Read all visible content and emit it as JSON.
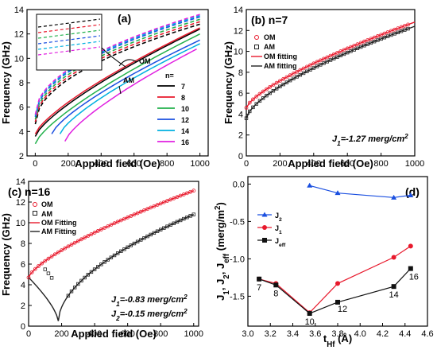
{
  "chart_data": [
    {
      "panel": "(a)",
      "type": "line",
      "xlabel": "Applied field (Oe)",
      "ylabel": "Frequency (GHz)",
      "xlim": [
        -50,
        1050
      ],
      "ylim": [
        2,
        14
      ],
      "xticks": [
        0,
        200,
        400,
        600,
        800,
        1000
      ],
      "yticks": [
        2,
        4,
        6,
        8,
        10,
        12,
        14
      ],
      "labels": {
        "om": "OM",
        "am": "AM",
        "legend_title": "n="
      },
      "series": [
        {
          "name": "7",
          "color": "#000000",
          "om": [
            [
              0,
              4.6
            ],
            [
              1000,
              12.8
            ]
          ],
          "am": [
            [
              0,
              3.6
            ],
            [
              1000,
              12.4
            ]
          ]
        },
        {
          "name": "8",
          "color": "#e8192c",
          "om": [
            [
              0,
              4.8
            ],
            [
              1000,
              13.0
            ]
          ],
          "am": [
            [
              0,
              3.8
            ],
            [
              1000,
              12.5
            ]
          ]
        },
        {
          "name": "10",
          "color": "#22b14c",
          "om": [
            [
              0,
              5.0
            ],
            [
              1000,
              13.2
            ]
          ],
          "am": [
            [
              0,
              3.0
            ],
            [
              1000,
              12.0
            ]
          ]
        },
        {
          "name": "12",
          "color": "#1a4fe0",
          "om": [
            [
              0,
              5.2
            ],
            [
              1000,
              13.4
            ]
          ],
          "am": [
            [
              100,
              3.8
            ],
            [
              1000,
              11.5
            ]
          ]
        },
        {
          "name": "14",
          "color": "#00b0e0",
          "om": [
            [
              0,
              5.3
            ],
            [
              1000,
              13.5
            ]
          ],
          "am": [
            [
              150,
              3.8
            ],
            [
              1000,
              11.2
            ]
          ]
        },
        {
          "name": "16",
          "color": "#e020e0",
          "om": [
            [
              0,
              5.4
            ],
            [
              1000,
              13.6
            ]
          ],
          "am": [
            [
              180,
              3.2
            ],
            [
              1000,
              10.9
            ]
          ]
        }
      ],
      "inset": true
    },
    {
      "panel": "(b) n=7",
      "type": "scatter",
      "xlabel": "Applied field (Oe)",
      "ylabel": "Frequency (GHz)",
      "xlim": [
        0,
        1000
      ],
      "ylim": [
        0,
        14
      ],
      "xticks": [
        0,
        200,
        400,
        600,
        800,
        1000
      ],
      "yticks": [
        0,
        2,
        4,
        6,
        8,
        10,
        12,
        14
      ],
      "legend": [
        "OM",
        "AM",
        "OM fitting",
        "AM fitting"
      ],
      "annotations": [
        "J1=-1.27 merg/cm2"
      ],
      "series": [
        {
          "name": "OM",
          "color": "#e8192c",
          "f0": 4.6,
          "f1000": 12.8
        },
        {
          "name": "AM",
          "color": "#222222",
          "f0": 3.6,
          "f1000": 12.4
        }
      ]
    },
    {
      "panel": "(c) n=16",
      "type": "scatter",
      "xlabel": "Applied field (Oe)",
      "ylabel": "Frequency (GHz)",
      "xlim": [
        0,
        1030
      ],
      "ylim": [
        0,
        14
      ],
      "xticks": [
        0,
        200,
        400,
        600,
        800,
        1000
      ],
      "yticks": [
        0,
        2,
        4,
        6,
        8,
        10,
        12,
        14
      ],
      "legend": [
        "OM",
        "AM",
        "OM Fitting",
        "AM Fitting"
      ],
      "annotations": [
        "J1=-0.83 merg/cm2",
        "J2=-0.15 merg/cm2"
      ],
      "series": [
        {
          "name": "OM",
          "color": "#e8192c",
          "f0": 4.7,
          "f1000": 13.1
        },
        {
          "name": "AM",
          "color": "#222222",
          "f0": 4.7,
          "hmin": 180,
          "fmin": 0.5,
          "f1000": 10.8
        }
      ]
    },
    {
      "panel": "(d)",
      "type": "line",
      "xlabel": "tHf (Å)",
      "ylabel": "J1, J2, Jeff (merg/m2)",
      "xlim": [
        3.0,
        4.6
      ],
      "ylim": [
        -1.9,
        0.1
      ],
      "xticks": [
        3.0,
        3.2,
        3.4,
        3.6,
        3.8,
        4.0,
        4.2,
        4.4,
        4.6
      ],
      "yticks": [
        -1.5,
        -1.0,
        -0.5,
        0.0
      ],
      "x": [
        3.1,
        3.25,
        3.55,
        3.8,
        4.3,
        4.45
      ],
      "point_labels": [
        "7",
        "8",
        "10",
        "12",
        "14",
        "16"
      ],
      "series": [
        {
          "name": "J2",
          "color": "#1a4fe0",
          "marker": "triangle",
          "x": [
            3.55,
            3.8,
            4.3,
            4.45
          ],
          "values": [
            -0.02,
            -0.12,
            -0.18,
            -0.15
          ]
        },
        {
          "name": "J1",
          "color": "#e8192c",
          "marker": "circle",
          "x": [
            3.1,
            3.25,
            3.55,
            3.8,
            4.3,
            4.45
          ],
          "values": [
            -1.27,
            -1.33,
            -1.72,
            -1.33,
            -0.98,
            -0.83
          ]
        },
        {
          "name": "Jeff",
          "color": "#111111",
          "marker": "square",
          "x": [
            3.1,
            3.25,
            3.55,
            3.8,
            4.3,
            4.45
          ],
          "values": [
            -1.27,
            -1.35,
            -1.73,
            -1.58,
            -1.37,
            -1.13
          ]
        }
      ]
    }
  ]
}
